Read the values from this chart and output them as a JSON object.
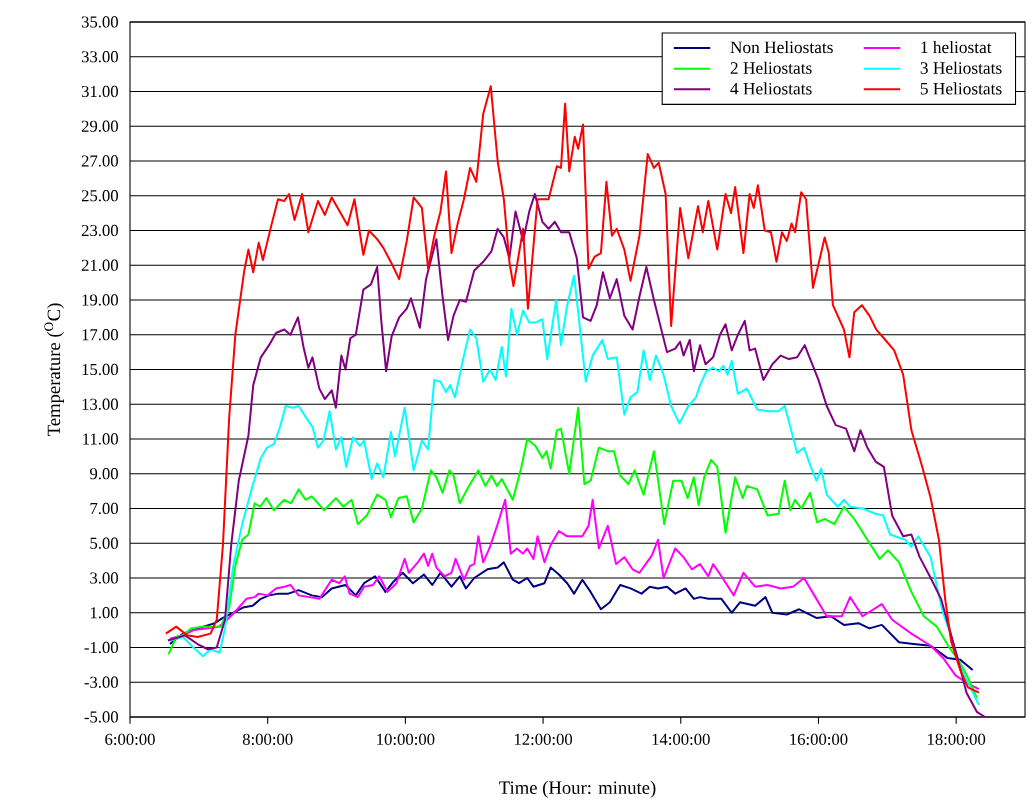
{
  "chart_data": {
    "type": "line",
    "xlabel": "Time (Hour: minute)",
    "ylabel": "Temperature ($^{O}$C)",
    "xlim": [
      6,
      19
    ],
    "ylim": [
      -5,
      35
    ],
    "xticks": [
      {
        "value": 6,
        "label": "6:00:00"
      },
      {
        "value": 8,
        "label": "8:00:00"
      },
      {
        "value": 10,
        "label": "10:00:00"
      },
      {
        "value": 12,
        "label": "12:00:00"
      },
      {
        "value": 14,
        "label": "14:00:00"
      },
      {
        "value": 16,
        "label": "16:00:00"
      },
      {
        "value": 18,
        "label": "18:00:00"
      }
    ],
    "yticks": [
      {
        "value": -5,
        "label": "-5.00"
      },
      {
        "value": -3,
        "label": "-3.00"
      },
      {
        "value": -1,
        "label": "-1.00"
      },
      {
        "value": 1,
        "label": "1.00"
      },
      {
        "value": 3,
        "label": "3.00"
      },
      {
        "value": 5,
        "label": "5.00"
      },
      {
        "value": 7,
        "label": "7.00"
      },
      {
        "value": 9,
        "label": "9.00"
      },
      {
        "value": 11,
        "label": "11.00"
      },
      {
        "value": 13,
        "label": "13.00"
      },
      {
        "value": 15,
        "label": "15.00"
      },
      {
        "value": 17,
        "label": "17.00"
      },
      {
        "value": 19,
        "label": "19.00"
      },
      {
        "value": 21,
        "label": "21.00"
      },
      {
        "value": 23,
        "label": "23.00"
      },
      {
        "value": 25,
        "label": "25.00"
      },
      {
        "value": 27,
        "label": "27.00"
      },
      {
        "value": 29,
        "label": "29.00"
      },
      {
        "value": 31,
        "label": "31.00"
      },
      {
        "value": 33,
        "label": "33.00"
      },
      {
        "value": 35,
        "label": "35.00"
      }
    ],
    "grid": "y",
    "legend": "top right",
    "series": [
      {
        "name": "Non Heliostats",
        "color": "#000080",
        "x": [
          6.58,
          6.77,
          6.92,
          7.07,
          7.23,
          7.35,
          7.5,
          7.64,
          7.78,
          7.9,
          8.02,
          8.16,
          8.3,
          8.45,
          8.64,
          8.79,
          8.93,
          9.13,
          9.28,
          9.4,
          9.56,
          9.71,
          9.83,
          9.96,
          10.11,
          10.27,
          10.39,
          10.51,
          10.67,
          10.79,
          10.88,
          11.0,
          11.19,
          11.34,
          11.43,
          11.56,
          11.65,
          11.77,
          11.86,
          12.02,
          12.11,
          12.23,
          12.35,
          12.45,
          12.57,
          12.69,
          12.84,
          12.97,
          13.12,
          13.27,
          13.43,
          13.55,
          13.67,
          13.8,
          13.92,
          14.07,
          14.19,
          14.28,
          14.4,
          14.59,
          14.74,
          14.86,
          15.08,
          15.23,
          15.33,
          15.54,
          15.72,
          15.97,
          16.18,
          16.37,
          16.58,
          16.74,
          16.92,
          17.17,
          17.38,
          17.63,
          17.87,
          18.06,
          18.24
        ],
        "values": [
          -0.8,
          -0.2,
          0.0,
          0.2,
          0.4,
          0.7,
          1.0,
          1.3,
          1.4,
          1.8,
          2.0,
          2.1,
          2.1,
          2.3,
          2.0,
          1.9,
          2.4,
          2.6,
          2.0,
          2.7,
          3.1,
          2.2,
          2.8,
          3.3,
          2.7,
          3.2,
          2.6,
          3.3,
          2.5,
          3.1,
          2.4,
          3.0,
          3.5,
          3.6,
          3.9,
          2.9,
          2.7,
          3.0,
          2.5,
          2.7,
          3.6,
          3.2,
          2.7,
          2.1,
          2.9,
          2.2,
          1.2,
          1.6,
          2.6,
          2.4,
          2.1,
          2.5,
          2.4,
          2.5,
          2.1,
          2.4,
          1.8,
          1.9,
          1.8,
          1.8,
          1.0,
          1.6,
          1.4,
          1.9,
          1.0,
          0.9,
          1.2,
          0.7,
          0.8,
          0.3,
          0.4,
          0.1,
          0.3,
          -0.7,
          -0.8,
          -0.9,
          -1.6,
          -1.7,
          -2.3
        ]
      },
      {
        "name": "1 heliostat",
        "color": "#ff00ff",
        "x": [
          6.58,
          6.77,
          6.92,
          7.1,
          7.29,
          7.41,
          7.56,
          7.69,
          7.81,
          7.87,
          8.0,
          8.12,
          8.24,
          8.33,
          8.45,
          8.61,
          8.75,
          8.93,
          9.04,
          9.12,
          9.19,
          9.31,
          9.4,
          9.53,
          9.62,
          9.74,
          9.87,
          9.99,
          10.05,
          10.18,
          10.27,
          10.33,
          10.39,
          10.45,
          10.57,
          10.67,
          10.73,
          10.85,
          10.94,
          11.0,
          11.06,
          11.13,
          11.22,
          11.34,
          11.45,
          11.53,
          11.62,
          11.71,
          11.77,
          11.86,
          11.92,
          12.02,
          12.11,
          12.23,
          12.35,
          12.57,
          12.66,
          12.72,
          12.81,
          12.94,
          13.06,
          13.18,
          13.3,
          13.4,
          13.49,
          13.58,
          13.67,
          13.75,
          13.92,
          14.04,
          14.16,
          14.28,
          14.4,
          14.47,
          14.59,
          14.77,
          14.91,
          15.08,
          15.26,
          15.45,
          15.63,
          15.79,
          15.94,
          16.12,
          16.34,
          16.46,
          16.64,
          16.92,
          17.07,
          17.35,
          17.63,
          17.81,
          17.99,
          18.18,
          18.33
        ],
        "values": [
          -0.5,
          -0.3,
          0.0,
          0.1,
          0.2,
          0.6,
          1.2,
          1.8,
          1.9,
          2.1,
          2.0,
          2.4,
          2.5,
          2.6,
          2.0,
          1.9,
          1.8,
          2.9,
          2.7,
          3.1,
          2.1,
          1.9,
          2.5,
          2.6,
          3.1,
          2.2,
          2.7,
          4.1,
          3.3,
          3.9,
          4.4,
          3.7,
          4.4,
          3.6,
          3.1,
          3.3,
          4.1,
          2.9,
          3.7,
          3.8,
          5.4,
          3.9,
          4.7,
          6.1,
          7.5,
          4.4,
          4.7,
          4.4,
          4.7,
          4.1,
          5.4,
          3.9,
          4.9,
          5.7,
          5.4,
          5.4,
          6.0,
          7.5,
          4.7,
          6.0,
          3.8,
          4.2,
          3.5,
          3.3,
          3.8,
          4.3,
          5.2,
          3.0,
          4.7,
          4.2,
          3.5,
          3.8,
          3.1,
          3.8,
          3.1,
          2.0,
          3.3,
          2.5,
          2.6,
          2.4,
          2.5,
          3.0,
          2.0,
          0.8,
          0.8,
          1.9,
          0.8,
          1.5,
          0.6,
          -0.2,
          -0.9,
          -1.6,
          -2.6,
          -3.1,
          -3.4
        ]
      },
      {
        "name": "2 Heliostats",
        "color": "#00ff00",
        "x": [
          6.56,
          6.67,
          6.77,
          6.89,
          7.04,
          7.2,
          7.32,
          7.44,
          7.53,
          7.63,
          7.72,
          7.81,
          7.89,
          7.98,
          8.09,
          8.24,
          8.34,
          8.45,
          8.55,
          8.64,
          8.82,
          8.99,
          9.1,
          9.22,
          9.31,
          9.44,
          9.59,
          9.71,
          9.79,
          9.9,
          10.02,
          10.12,
          10.24,
          10.37,
          10.45,
          10.54,
          10.64,
          10.7,
          10.79,
          10.91,
          11.06,
          11.16,
          11.25,
          11.33,
          11.4,
          11.56,
          11.68,
          11.77,
          11.89,
          11.99,
          12.05,
          12.11,
          12.2,
          12.26,
          12.38,
          12.51,
          12.6,
          12.69,
          12.81,
          12.94,
          13.03,
          13.12,
          13.24,
          13.33,
          13.46,
          13.61,
          13.76,
          13.89,
          14.01,
          14.1,
          14.19,
          14.26,
          14.34,
          14.44,
          14.53,
          14.65,
          14.79,
          14.9,
          14.96,
          15.11,
          15.26,
          15.42,
          15.51,
          15.59,
          15.66,
          15.75,
          15.88,
          15.98,
          16.09,
          16.23,
          16.37,
          16.52,
          16.71,
          16.89,
          17.01,
          17.17,
          17.35,
          17.53,
          17.72,
          17.9,
          18.06,
          18.18,
          18.3
        ],
        "values": [
          -1.4,
          -0.4,
          -0.3,
          0.1,
          0.2,
          0.2,
          0.2,
          1.3,
          3.7,
          5.2,
          5.5,
          7.3,
          7.1,
          7.6,
          6.9,
          7.5,
          7.3,
          8.1,
          7.5,
          7.7,
          6.9,
          7.6,
          7.1,
          7.5,
          6.1,
          6.6,
          7.8,
          7.5,
          6.5,
          7.6,
          7.7,
          6.2,
          7.0,
          9.2,
          8.8,
          7.9,
          9.2,
          8.9,
          7.3,
          8.2,
          9.2,
          8.3,
          8.9,
          8.3,
          8.7,
          7.5,
          9.3,
          11.0,
          10.6,
          9.9,
          10.3,
          9.3,
          11.5,
          11.6,
          9.0,
          12.8,
          8.4,
          8.6,
          10.5,
          10.3,
          10.3,
          8.9,
          8.4,
          9.2,
          7.8,
          10.3,
          6.1,
          8.6,
          8.6,
          7.6,
          8.8,
          7.2,
          8.8,
          9.8,
          9.4,
          5.6,
          8.8,
          7.6,
          8.3,
          8.1,
          6.6,
          6.7,
          8.6,
          6.9,
          7.5,
          7.0,
          7.9,
          6.2,
          6.4,
          6.1,
          7.1,
          6.4,
          5.2,
          4.1,
          4.6,
          3.9,
          2.2,
          0.8,
          0.2,
          -1.0,
          -1.9,
          -2.8,
          -3.9
        ]
      },
      {
        "name": "3 Heliostats",
        "color": "#00ffff",
        "x": [
          6.58,
          6.77,
          6.92,
          7.06,
          7.17,
          7.3,
          7.38,
          7.5,
          7.63,
          7.78,
          7.9,
          7.99,
          8.09,
          8.18,
          8.26,
          8.36,
          8.45,
          8.58,
          8.65,
          8.73,
          8.81,
          8.9,
          8.99,
          9.07,
          9.14,
          9.24,
          9.34,
          9.4,
          9.51,
          9.59,
          9.68,
          9.79,
          9.85,
          9.99,
          10.12,
          10.24,
          10.33,
          10.42,
          10.51,
          10.59,
          10.65,
          10.72,
          10.85,
          10.94,
          11.03,
          11.13,
          11.23,
          11.31,
          11.4,
          11.46,
          11.54,
          11.62,
          11.71,
          11.8,
          11.89,
          11.99,
          12.06,
          12.19,
          12.26,
          12.35,
          12.45,
          12.51,
          12.62,
          12.72,
          12.8,
          12.86,
          12.94,
          13.07,
          13.18,
          13.27,
          13.37,
          13.46,
          13.55,
          13.64,
          13.75,
          13.86,
          13.98,
          14.11,
          14.22,
          14.28,
          14.37,
          14.47,
          14.55,
          14.62,
          14.68,
          14.74,
          14.83,
          14.96,
          15.11,
          15.26,
          15.42,
          15.51,
          15.59,
          15.69,
          15.79,
          15.88,
          15.97,
          16.04,
          16.12,
          16.28,
          16.37,
          16.46,
          16.64,
          16.83,
          16.94,
          17.04,
          17.26,
          17.35,
          17.45,
          17.63,
          17.72,
          17.81,
          17.93,
          18.06,
          18.18,
          18.33
        ],
        "values": [
          -0.6,
          -0.4,
          -1.0,
          -1.5,
          -1.1,
          -1.3,
          0.1,
          3.7,
          6.1,
          8.3,
          9.9,
          10.5,
          10.7,
          11.7,
          12.9,
          12.8,
          12.9,
          12.1,
          11.7,
          10.5,
          10.9,
          12.6,
          10.4,
          11.1,
          9.4,
          11.1,
          10.6,
          10.9,
          8.7,
          9.6,
          8.8,
          11.4,
          10.0,
          12.8,
          9.2,
          10.9,
          10.4,
          14.4,
          14.3,
          13.7,
          14.1,
          13.4,
          15.8,
          17.3,
          16.8,
          14.3,
          15.0,
          14.4,
          16.3,
          14.6,
          18.5,
          17.0,
          18.4,
          17.7,
          17.7,
          17.9,
          15.6,
          19.0,
          16.4,
          18.7,
          20.4,
          18.3,
          14.3,
          15.8,
          16.3,
          16.7,
          15.6,
          15.7,
          12.4,
          13.4,
          13.7,
          16.1,
          14.4,
          15.8,
          14.7,
          12.9,
          11.9,
          12.9,
          13.4,
          14.1,
          14.9,
          15.1,
          14.9,
          15.2,
          14.7,
          15.5,
          13.6,
          13.9,
          12.7,
          12.6,
          12.6,
          12.9,
          11.7,
          10.2,
          10.5,
          9.5,
          8.6,
          9.3,
          7.8,
          7.1,
          7.5,
          7.1,
          7.0,
          6.7,
          6.6,
          5.5,
          5.2,
          4.8,
          5.4,
          4.2,
          2.5,
          1.0,
          -0.4,
          -2.1,
          -3.1,
          -4.3
        ]
      },
      {
        "name": "4 Heliostats",
        "color": "#800080",
        "x": [
          6.55,
          6.8,
          6.98,
          7.13,
          7.26,
          7.38,
          7.47,
          7.58,
          7.72,
          7.79,
          7.9,
          8.02,
          8.12,
          8.24,
          8.33,
          8.44,
          8.52,
          8.59,
          8.65,
          8.75,
          8.83,
          8.93,
          8.99,
          9.07,
          9.13,
          9.2,
          9.28,
          9.39,
          9.5,
          9.59,
          9.65,
          9.72,
          9.8,
          9.91,
          10.02,
          10.08,
          10.21,
          10.3,
          10.45,
          10.54,
          10.62,
          10.7,
          10.79,
          10.88,
          11.0,
          11.13,
          11.25,
          11.34,
          11.43,
          11.51,
          11.6,
          11.71,
          11.8,
          11.88,
          11.99,
          12.08,
          12.17,
          12.26,
          12.38,
          12.49,
          12.58,
          12.69,
          12.78,
          12.87,
          12.97,
          13.07,
          13.18,
          13.3,
          13.4,
          13.5,
          13.61,
          13.8,
          13.92,
          13.99,
          14.04,
          14.13,
          14.19,
          14.28,
          14.36,
          14.47,
          14.57,
          14.65,
          14.74,
          14.83,
          14.93,
          15.0,
          15.08,
          15.2,
          15.33,
          15.45,
          15.57,
          15.69,
          15.8,
          15.88,
          16.0,
          16.12,
          16.25,
          16.4,
          16.52,
          16.61,
          16.71,
          16.83,
          16.95,
          17.07,
          17.23,
          17.35,
          17.47,
          17.63,
          17.78,
          17.9,
          18.02,
          18.15,
          18.3,
          18.42
        ],
        "values": [
          -0.6,
          -0.3,
          -0.8,
          -1.1,
          -1.0,
          0.6,
          4.9,
          8.6,
          11.2,
          14.1,
          15.7,
          16.4,
          17.1,
          17.3,
          17.0,
          18.0,
          16.3,
          15.1,
          15.7,
          13.9,
          13.3,
          13.8,
          12.8,
          15.8,
          15.0,
          16.8,
          17.0,
          19.6,
          19.9,
          20.9,
          17.8,
          14.9,
          16.9,
          18.0,
          18.5,
          19.1,
          17.4,
          20.2,
          22.5,
          19.2,
          16.7,
          18.1,
          19.0,
          18.9,
          20.7,
          21.2,
          21.8,
          23.1,
          22.6,
          21.4,
          24.1,
          22.4,
          24.1,
          25.1,
          23.5,
          23.1,
          23.5,
          22.9,
          22.9,
          21.4,
          18.0,
          17.8,
          18.7,
          20.6,
          19.1,
          20.2,
          18.1,
          17.3,
          19.2,
          20.9,
          19.0,
          16.0,
          16.2,
          16.6,
          15.8,
          16.7,
          14.9,
          16.4,
          15.3,
          15.7,
          17.0,
          17.6,
          16.1,
          17.0,
          17.8,
          16.1,
          16.2,
          14.4,
          15.3,
          15.8,
          15.6,
          15.7,
          16.4,
          15.6,
          14.4,
          12.9,
          11.8,
          11.6,
          10.3,
          11.5,
          10.5,
          9.7,
          9.4,
          6.6,
          5.4,
          5.5,
          4.2,
          3.0,
          1.8,
          0.1,
          -1.6,
          -3.6,
          -4.7,
          -5.0
        ]
      },
      {
        "name": "5 Heliostats",
        "color": "#ff0000",
        "x": [
          6.52,
          6.67,
          6.83,
          6.98,
          7.17,
          7.26,
          7.35,
          7.44,
          7.53,
          7.66,
          7.72,
          7.79,
          7.87,
          7.93,
          8.06,
          8.15,
          8.24,
          8.31,
          8.39,
          8.5,
          8.59,
          8.73,
          8.83,
          8.93,
          9.16,
          9.26,
          9.39,
          9.47,
          9.59,
          9.68,
          9.8,
          9.91,
          10.02,
          10.12,
          10.24,
          10.33,
          10.42,
          10.51,
          10.59,
          10.67,
          10.76,
          10.85,
          10.94,
          11.03,
          11.13,
          11.24,
          11.34,
          11.43,
          11.51,
          11.57,
          11.71,
          11.78,
          11.92,
          12.08,
          12.2,
          12.26,
          12.32,
          12.38,
          12.46,
          12.51,
          12.58,
          12.66,
          12.75,
          12.84,
          12.92,
          13.0,
          13.07,
          13.18,
          13.27,
          13.4,
          13.52,
          13.61,
          13.68,
          13.78,
          13.86,
          13.99,
          14.11,
          14.25,
          14.32,
          14.4,
          14.53,
          14.65,
          14.73,
          14.79,
          14.91,
          15.0,
          15.06,
          15.12,
          15.22,
          15.31,
          15.39,
          15.47,
          15.54,
          15.61,
          15.66,
          15.75,
          15.82,
          15.92,
          16.02,
          16.09,
          16.15,
          16.21,
          16.37,
          16.45,
          16.52,
          16.63,
          16.74,
          16.84,
          16.95,
          17.1,
          17.23,
          17.35,
          17.5,
          17.63,
          17.75,
          17.84,
          17.93,
          18.06,
          18.17,
          18.33
        ],
        "values": [
          -0.2,
          0.2,
          -0.3,
          -0.4,
          -0.2,
          0.6,
          4.9,
          12.2,
          17.0,
          20.7,
          21.9,
          20.6,
          22.3,
          21.3,
          23.4,
          24.8,
          24.7,
          25.1,
          23.6,
          25.1,
          22.9,
          24.7,
          23.9,
          24.9,
          23.3,
          24.8,
          21.6,
          23.0,
          22.5,
          22.0,
          21.1,
          20.2,
          22.4,
          24.9,
          24.3,
          20.8,
          22.7,
          24.1,
          26.4,
          21.7,
          23.4,
          24.8,
          26.6,
          25.8,
          29.7,
          31.3,
          27.0,
          24.8,
          21.2,
          19.8,
          23.1,
          18.5,
          24.8,
          24.8,
          26.7,
          26.6,
          30.3,
          26.4,
          28.4,
          27.7,
          29.1,
          20.8,
          21.5,
          21.7,
          25.8,
          22.7,
          23.1,
          21.9,
          20.1,
          22.7,
          27.4,
          26.6,
          26.9,
          25.1,
          17.5,
          24.3,
          21.4,
          24.4,
          22.9,
          24.7,
          21.9,
          25.1,
          24.0,
          25.5,
          21.7,
          25.1,
          24.3,
          25.6,
          23.0,
          22.9,
          21.2,
          22.9,
          22.4,
          23.4,
          22.9,
          25.2,
          24.8,
          19.7,
          21.4,
          22.6,
          21.7,
          18.7,
          17.3,
          15.7,
          18.3,
          18.7,
          18.1,
          17.3,
          16.8,
          16.1,
          14.7,
          11.5,
          9.5,
          7.6,
          5.2,
          1.8,
          -0.7,
          -2.3,
          -3.3,
          -3.6
        ]
      }
    ]
  }
}
